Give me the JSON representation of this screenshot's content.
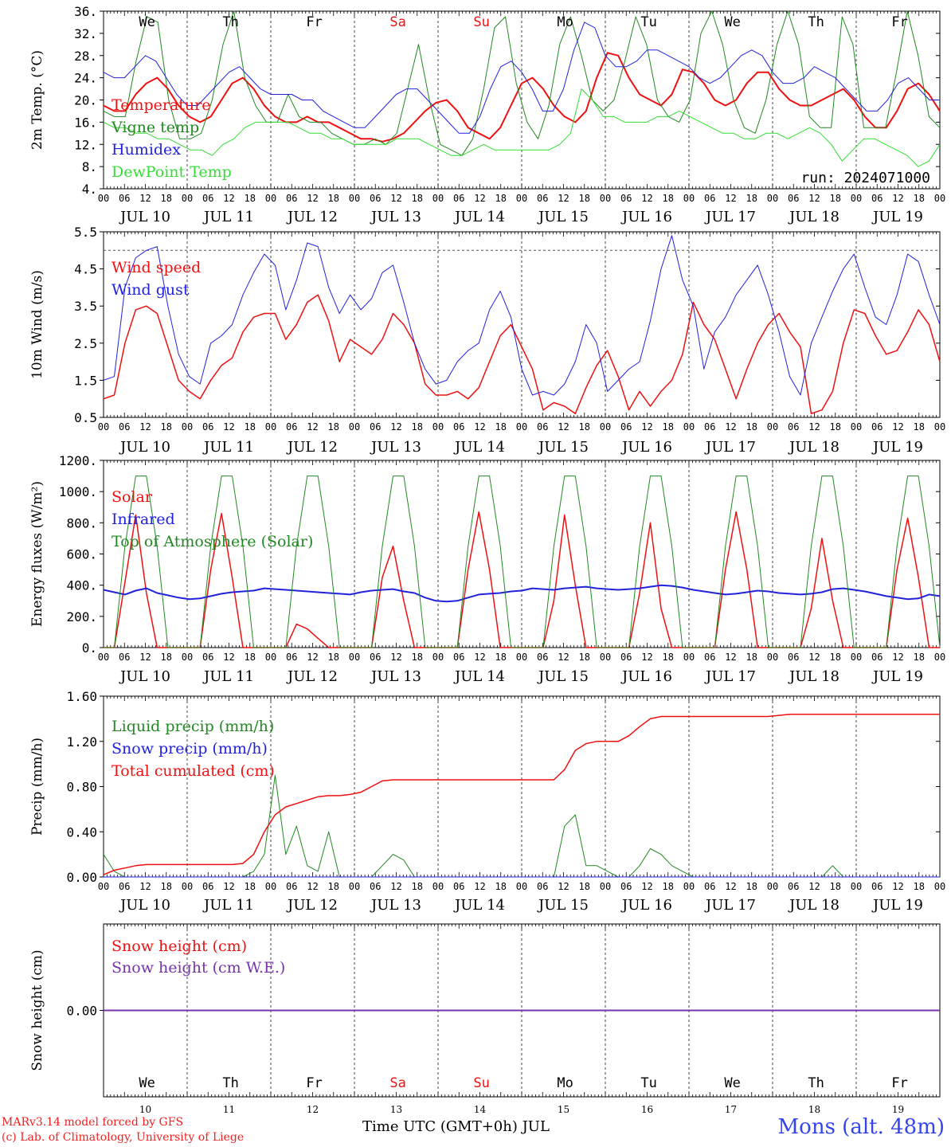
{
  "time_axis": {
    "hour_ticks": [
      "00",
      "06",
      "12",
      "18"
    ],
    "final_tick": "00",
    "date_labels": [
      "JUL 10",
      "JUL 11",
      "JUL 12",
      "JUL 13",
      "JUL 14",
      "JUL 15",
      "JUL 16",
      "JUL 17",
      "JUL 18",
      "JUL 19"
    ],
    "weekdays": [
      "We",
      "Th",
      "Fr",
      "Sa",
      "Su",
      "Mo",
      "Tu",
      "We",
      "Th",
      "Fr"
    ],
    "weekend_flags": [
      false,
      false,
      false,
      true,
      true,
      false,
      false,
      false,
      false,
      false
    ],
    "day_numbers": [
      "10",
      "11",
      "12",
      "13",
      "14",
      "15",
      "16",
      "17",
      "18",
      "19"
    ]
  },
  "footer": {
    "credit_line1": "MARv3.14 model forced by GFS",
    "credit_line2": "(c) Lab. of Climatology, University of Liege",
    "x_axis_label": "Time UTC (GMT+0h) JUL",
    "station": "Mons (alt. 48m)"
  },
  "chart_data": [
    {
      "type": "line",
      "ylabel": "2m Temp. (°C)",
      "ylim": [
        4,
        36
      ],
      "yticks": [
        "4.",
        "8.",
        "12.",
        "16.",
        "20.",
        "24.",
        "28.",
        "32.",
        "36."
      ],
      "annotation": "run: 2024071000",
      "x_hours_step": 6,
      "series": [
        {
          "name": "Temperature",
          "color": "#ee1111",
          "width": 2,
          "values": [
            19,
            18,
            18,
            21,
            23,
            24,
            22,
            19,
            17,
            16,
            17,
            20,
            23,
            24,
            22,
            19,
            17,
            16,
            16,
            17,
            16,
            16,
            15,
            14,
            13,
            13,
            12.5,
            13,
            14,
            16,
            18,
            19.5,
            20,
            18,
            15,
            14,
            13,
            15,
            19,
            23,
            24,
            22,
            19,
            17,
            16,
            18,
            24,
            28.5,
            28,
            24,
            21,
            20,
            19,
            21,
            25.5,
            25,
            23,
            20,
            19,
            20,
            23,
            25,
            25,
            22,
            20,
            19,
            19,
            20,
            21,
            22,
            20,
            17,
            15,
            15,
            18,
            22,
            23,
            21,
            18
          ]
        },
        {
          "name": "Vigne temp",
          "color": "#228822",
          "width": 1,
          "values": [
            18,
            17,
            17,
            27,
            35,
            34,
            20,
            13,
            13,
            14,
            20,
            30,
            36,
            24,
            19,
            16,
            16,
            21,
            17,
            16,
            16,
            14,
            13,
            12,
            12,
            13,
            12,
            14,
            22,
            30,
            20,
            12,
            11,
            10,
            13,
            22,
            33,
            35,
            23,
            16,
            13,
            19,
            30,
            35,
            28,
            20,
            18,
            20,
            27,
            35,
            30,
            20,
            17,
            16,
            20,
            32,
            36,
            30,
            20,
            15,
            14,
            20,
            30,
            36,
            30,
            17,
            15,
            15,
            35,
            30,
            15,
            15,
            15,
            25,
            36,
            28,
            17,
            15
          ]
        },
        {
          "name": "Humidex",
          "color": "#2222dd",
          "width": 1,
          "values": [
            25,
            24,
            24,
            26,
            28,
            27,
            24,
            21,
            19,
            19,
            21,
            23,
            25,
            26,
            24,
            22,
            21,
            21,
            21,
            20,
            20,
            18,
            17,
            16,
            15,
            15,
            17,
            19,
            21,
            22,
            22,
            20,
            18,
            16,
            14,
            14,
            17,
            22,
            26,
            27,
            25,
            22,
            18,
            18,
            22,
            29,
            34,
            33,
            28,
            26,
            26,
            27,
            29,
            29,
            28,
            27,
            26,
            24,
            23,
            24,
            26,
            28,
            29,
            28,
            25,
            23,
            23,
            24,
            26,
            25,
            24,
            22,
            20,
            18,
            18,
            20,
            23,
            24,
            22,
            20,
            20
          ]
        },
        {
          "name": "DewPoint Temp",
          "color": "#33dd33",
          "width": 1,
          "values": [
            16,
            15,
            15,
            14,
            14,
            13,
            13,
            12,
            11,
            11,
            10,
            12,
            13,
            15,
            16,
            16,
            16,
            16,
            15,
            14,
            14,
            13,
            13,
            12,
            12,
            12,
            12,
            13,
            13,
            13,
            12,
            11,
            10,
            10,
            11,
            12,
            11,
            11,
            11,
            11,
            11,
            11,
            12,
            14,
            22,
            20,
            17,
            17,
            16,
            16,
            16,
            17,
            17,
            18,
            17,
            16,
            15,
            14,
            14,
            13,
            13,
            14,
            14,
            13,
            14,
            15,
            14,
            12,
            9,
            11,
            13,
            13,
            12,
            11,
            10,
            8,
            9,
            12
          ]
        }
      ]
    },
    {
      "type": "line",
      "ylabel": "10m Wind (m/s)",
      "ylim": [
        0.5,
        5.5
      ],
      "yticks": [
        "0.5",
        "1.5",
        "2.5",
        "3.5",
        "4.5",
        "5.5"
      ],
      "reference_line": 5,
      "x_hours_step": 6,
      "series": [
        {
          "name": "Wind speed",
          "color": "#ee1111",
          "width": 1.5,
          "values": [
            1.0,
            1.1,
            2.5,
            3.4,
            3.5,
            3.3,
            2.4,
            1.5,
            1.2,
            1.0,
            1.5,
            1.9,
            2.1,
            2.8,
            3.2,
            3.3,
            3.3,
            2.6,
            3.0,
            3.6,
            3.8,
            3.1,
            2.0,
            2.6,
            2.4,
            2.2,
            2.6,
            3.3,
            3.0,
            2.5,
            1.4,
            1.1,
            1.1,
            1.2,
            1.0,
            1.3,
            2.0,
            2.7,
            3.0,
            2.4,
            1.8,
            0.7,
            0.9,
            0.8,
            0.6,
            1.3,
            1.9,
            2.3,
            1.6,
            0.7,
            1.2,
            0.8,
            1.2,
            1.5,
            2.2,
            3.6,
            3.0,
            2.6,
            1.8,
            1.0,
            1.8,
            2.5,
            3.0,
            3.3,
            2.8,
            2.4,
            0.6,
            0.7,
            1.2,
            2.5,
            3.4,
            3.3,
            2.7,
            2.2,
            2.3,
            2.8,
            3.4,
            3.0,
            2.0
          ]
        },
        {
          "name": "Wind gust",
          "color": "#2222dd",
          "width": 1,
          "values": [
            1.5,
            1.6,
            4.0,
            4.8,
            5.0,
            5.1,
            3.5,
            2.2,
            1.6,
            1.4,
            2.5,
            2.7,
            3.0,
            3.8,
            4.4,
            4.9,
            4.6,
            3.4,
            4.2,
            5.2,
            5.1,
            4.0,
            3.3,
            3.8,
            3.4,
            3.7,
            4.4,
            4.6,
            3.6,
            2.5,
            1.8,
            1.4,
            1.5,
            2.0,
            2.3,
            2.5,
            3.4,
            3.9,
            3.2,
            1.8,
            1.1,
            1.2,
            1.1,
            1.4,
            2.0,
            3.0,
            2.5,
            1.2,
            1.5,
            1.8,
            2.0,
            3.1,
            4.5,
            5.4,
            4.2,
            3.5,
            1.8,
            2.8,
            3.2,
            3.8,
            4.2,
            4.6,
            3.8,
            2.8,
            1.6,
            1.1,
            2.5,
            3.2,
            3.9,
            4.5,
            4.9,
            4.0,
            3.2,
            3.0,
            3.8,
            4.9,
            4.7,
            3.8,
            3.0
          ]
        }
      ]
    },
    {
      "type": "line",
      "ylabel": "Energy fluxes (W/m²)",
      "ylim": [
        0,
        1200
      ],
      "yticks": [
        "0.",
        "200.",
        "400.",
        "600.",
        "800.",
        "1000.",
        "1200."
      ],
      "x_hours_step": 6,
      "series": [
        {
          "name": "Solar",
          "color": "#ee1111",
          "width": 1.5,
          "values": [
            0,
            0,
            420,
            850,
            350,
            0,
            0,
            0,
            0,
            0,
            500,
            860,
            450,
            0,
            0,
            0,
            0,
            0,
            150,
            120,
            60,
            0,
            0,
            0,
            0,
            0,
            450,
            650,
            300,
            0,
            0,
            0,
            0,
            0,
            500,
            870,
            500,
            0,
            0,
            0,
            0,
            0,
            300,
            850,
            400,
            0,
            0,
            0,
            0,
            0,
            350,
            800,
            250,
            0,
            0,
            0,
            0,
            0,
            500,
            870,
            500,
            0,
            0,
            0,
            0,
            0,
            250,
            700,
            300,
            0,
            0,
            0,
            0,
            0,
            500,
            830,
            450,
            0,
            0
          ]
        },
        {
          "name": "Infrared",
          "color": "#2222dd",
          "width": 2,
          "values": [
            370,
            355,
            340,
            365,
            380,
            350,
            335,
            320,
            310,
            315,
            330,
            345,
            355,
            360,
            365,
            380,
            375,
            370,
            365,
            360,
            355,
            350,
            345,
            340,
            355,
            365,
            370,
            375,
            360,
            350,
            320,
            300,
            295,
            300,
            320,
            340,
            345,
            350,
            360,
            365,
            380,
            375,
            370,
            380,
            385,
            390,
            380,
            375,
            370,
            375,
            380,
            390,
            400,
            395,
            385,
            370,
            360,
            350,
            340,
            345,
            355,
            365,
            360,
            350,
            345,
            340,
            345,
            355,
            375,
            380,
            370,
            360,
            345,
            330,
            320,
            310,
            315,
            340,
            330
          ]
        },
        {
          "name": "Top of Atmosphere (Solar)",
          "color": "#228822",
          "width": 1,
          "values": [
            0,
            0,
            650,
            1100,
            1100,
            650,
            0,
            0,
            0,
            0,
            650,
            1100,
            1100,
            650,
            0,
            0,
            0,
            0,
            650,
            1100,
            1100,
            650,
            0,
            0,
            0,
            0,
            650,
            1100,
            1100,
            650,
            0,
            0,
            0,
            0,
            650,
            1100,
            1100,
            650,
            0,
            0,
            0,
            0,
            650,
            1100,
            1100,
            650,
            0,
            0,
            0,
            0,
            650,
            1100,
            1100,
            650,
            0,
            0,
            0,
            0,
            650,
            1100,
            1100,
            650,
            0,
            0,
            0,
            0,
            650,
            1100,
            1100,
            650,
            0,
            0,
            0,
            0,
            650,
            1100,
            1100,
            650,
            0
          ]
        }
      ]
    },
    {
      "type": "line",
      "ylabel": "Precip (mm/h)",
      "ylim": [
        0,
        1.6
      ],
      "yticks": [
        "0.00",
        "0.40",
        "0.80",
        "1.20",
        "1.60"
      ],
      "x_hours_step": 6,
      "series": [
        {
          "name": "Liquid precip (mm/h)",
          "color": "#228822",
          "width": 1,
          "values": [
            0.2,
            0.05,
            0,
            0,
            0,
            0,
            0,
            0,
            0,
            0,
            0,
            0,
            0,
            0,
            0.05,
            0.2,
            0.9,
            0.2,
            0.45,
            0.1,
            0.05,
            0.4,
            0,
            0,
            0,
            0,
            0.1,
            0.2,
            0.15,
            0,
            0,
            0,
            0,
            0,
            0,
            0,
            0,
            0,
            0,
            0,
            0,
            0,
            0,
            0.45,
            0.55,
            0.1,
            0.1,
            0.05,
            0,
            0,
            0.1,
            0.25,
            0.2,
            0.1,
            0.05,
            0,
            0,
            0,
            0,
            0,
            0,
            0,
            0,
            0,
            0,
            0,
            0,
            0,
            0.1,
            0,
            0,
            0,
            0,
            0,
            0,
            0,
            0,
            0,
            0
          ]
        },
        {
          "name": "Snow precip (mm/h)",
          "color": "#2222dd",
          "width": 1,
          "values": [
            0,
            0,
            0,
            0,
            0,
            0,
            0,
            0,
            0,
            0,
            0,
            0,
            0,
            0,
            0,
            0,
            0,
            0,
            0,
            0,
            0,
            0,
            0,
            0,
            0,
            0,
            0,
            0,
            0,
            0,
            0,
            0,
            0,
            0,
            0,
            0,
            0,
            0,
            0,
            0,
            0,
            0,
            0,
            0,
            0,
            0,
            0,
            0,
            0,
            0,
            0,
            0,
            0,
            0,
            0,
            0,
            0,
            0,
            0,
            0,
            0,
            0,
            0,
            0,
            0,
            0,
            0,
            0,
            0,
            0,
            0,
            0,
            0,
            0,
            0,
            0,
            0,
            0,
            0
          ]
        },
        {
          "name": "Total cumulated (cm)",
          "color": "#ee1111",
          "width": 1.5,
          "values": [
            0.02,
            0.06,
            0.08,
            0.1,
            0.11,
            0.11,
            0.11,
            0.11,
            0.11,
            0.11,
            0.11,
            0.11,
            0.11,
            0.12,
            0.2,
            0.4,
            0.55,
            0.62,
            0.65,
            0.68,
            0.71,
            0.72,
            0.72,
            0.73,
            0.75,
            0.8,
            0.85,
            0.86,
            0.86,
            0.86,
            0.86,
            0.86,
            0.86,
            0.86,
            0.86,
            0.86,
            0.86,
            0.86,
            0.86,
            0.86,
            0.86,
            0.86,
            0.86,
            0.95,
            1.12,
            1.18,
            1.2,
            1.2,
            1.2,
            1.25,
            1.33,
            1.4,
            1.42,
            1.42,
            1.42,
            1.42,
            1.42,
            1.42,
            1.42,
            1.42,
            1.42,
            1.42,
            1.42,
            1.43,
            1.44,
            1.44,
            1.44,
            1.44,
            1.44,
            1.44,
            1.44,
            1.44,
            1.44,
            1.44,
            1.44,
            1.44,
            1.44,
            1.44,
            1.44
          ]
        }
      ]
    },
    {
      "type": "line",
      "ylabel": "Snow height (cm)",
      "ylim": [
        -1,
        1
      ],
      "yticks": [
        "0.00"
      ],
      "x_hours_step": 6,
      "series": [
        {
          "name": "Snow height (cm)",
          "color": "#ee1111",
          "width": 1,
          "values": [
            0,
            0
          ]
        },
        {
          "name": "Snow height (cm W.E.)",
          "color": "#7733aa",
          "width": 2,
          "values": [
            0,
            0
          ]
        }
      ]
    }
  ]
}
